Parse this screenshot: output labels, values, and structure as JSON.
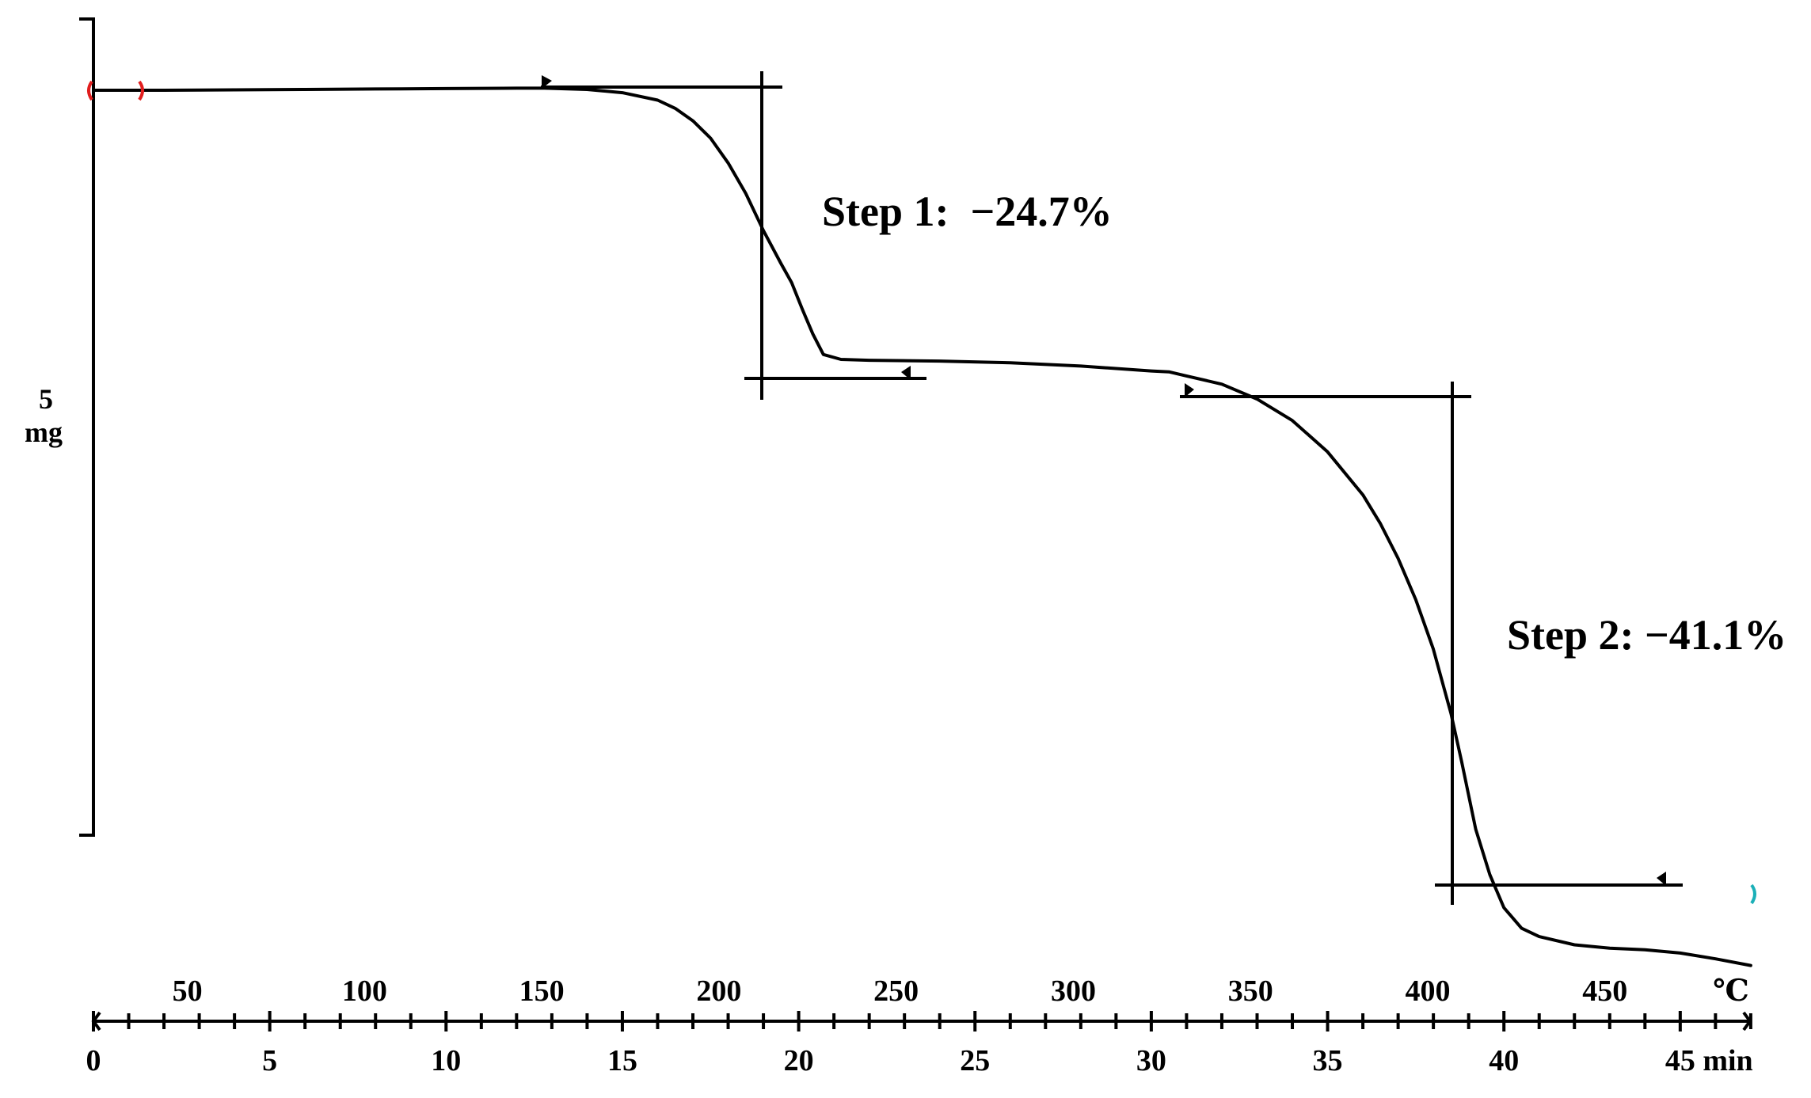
{
  "chart_data": {
    "type": "line",
    "title": "",
    "scale_bar": {
      "value": "5",
      "unit": "mg"
    },
    "x_axis_temperature": {
      "unit": "℃",
      "ticks": [
        "50",
        "100",
        "150",
        "200",
        "250",
        "300",
        "350",
        "400",
        "450"
      ]
    },
    "x_axis_time": {
      "unit": "min",
      "ticks": [
        "0",
        "5",
        "10",
        "15",
        "20",
        "25",
        "30",
        "35",
        "40",
        "45"
      ],
      "range": [
        0,
        47
      ]
    },
    "annotations": [
      {
        "label": "Step 1:  −24.7%"
      },
      {
        "label": "Step 2: −41.1%"
      }
    ],
    "series": [
      {
        "x": [
          0,
          2,
          4,
          6,
          8,
          10,
          12,
          12.8,
          14,
          15,
          16,
          16.5,
          17,
          17.5,
          18,
          18.5,
          19,
          19.5,
          19.8,
          20.1,
          20.4,
          20.7,
          21.2,
          22,
          24,
          26,
          28,
          30,
          30.5,
          31,
          32,
          33,
          34,
          35,
          36,
          36.5,
          37,
          37.5,
          38,
          38.5,
          38.8,
          39.2,
          39.6,
          40,
          40.5,
          41,
          42,
          43,
          44,
          45,
          46,
          47
        ],
        "y": [
          100,
          100,
          100.05,
          100.1,
          100.15,
          100.2,
          100.25,
          100.25,
          100.1,
          99.7,
          98.8,
          97.8,
          96.3,
          94.2,
          91.2,
          87.5,
          83,
          79,
          76.7,
          73.5,
          70.5,
          68,
          67.4,
          67.3,
          67.2,
          67,
          66.6,
          66,
          65.9,
          65.4,
          64.4,
          62.6,
          60,
          56.2,
          51,
          47.5,
          43.3,
          38.3,
          32.3,
          24.5,
          18.7,
          10.5,
          5,
          1,
          -1.5,
          -2.5,
          -3.5,
          -3.9,
          -4.1,
          -4.5,
          -5.2,
          -6
        ]
      }
    ]
  }
}
